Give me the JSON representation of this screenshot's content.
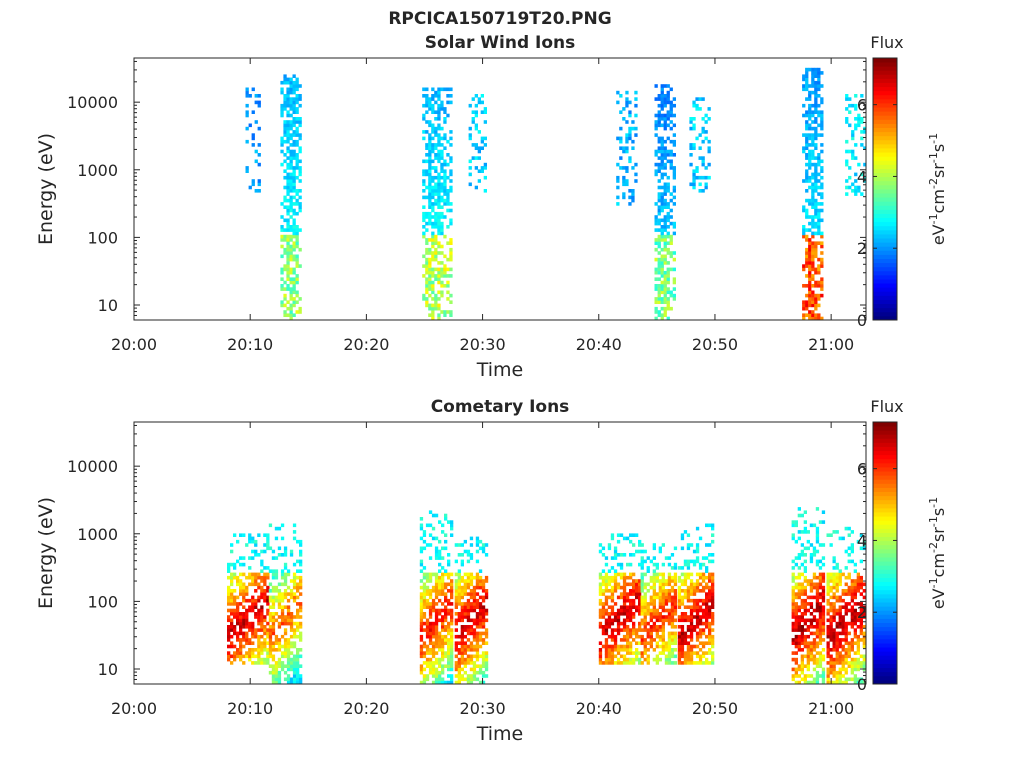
{
  "figure_title": "RPCICA150719T20.PNG",
  "chart_data": [
    {
      "type": "heatmap",
      "title": "Solar Wind Ions",
      "xlabel": "Time",
      "ylabel": "Energy (eV)",
      "yscale": "log",
      "ylim": [
        6,
        45000
      ],
      "xlim_minutes": [
        0,
        63
      ],
      "x_ticks": [
        "20:00",
        "20:10",
        "20:20",
        "20:30",
        "20:40",
        "20:50",
        "21:00"
      ],
      "y_ticks": [
        "10",
        "100",
        "1000",
        "10000"
      ],
      "colorbar": {
        "title": "Flux",
        "label": "eV-1cm-2sr-1s-1",
        "range": [
          0,
          7.3
        ],
        "ticks": [
          "0",
          "2",
          "4",
          "6"
        ],
        "colormap": "jet"
      },
      "bursts": [
        {
          "name": "burst-1a",
          "t_start": 9.6,
          "t_end": 10.8,
          "e_min": 500,
          "e_max": 15000,
          "peak": 2.0,
          "density": 0.35
        },
        {
          "name": "burst-1b",
          "t_start": 12.6,
          "t_end": 14.4,
          "e_min": 6,
          "e_max": 25000,
          "peak": 2.2,
          "low_peak": 3.8,
          "density": 0.75
        },
        {
          "name": "burst-2a",
          "t_start": 24.8,
          "t_end": 27.2,
          "e_min": 6,
          "e_max": 15000,
          "peak": 2.2,
          "low_peak": 4.0,
          "density": 0.75
        },
        {
          "name": "burst-2b",
          "t_start": 28.8,
          "t_end": 30.2,
          "e_min": 500,
          "e_max": 12000,
          "peak": 2.4,
          "density": 0.35
        },
        {
          "name": "burst-3a",
          "t_start": 41.5,
          "t_end": 43.3,
          "e_min": 300,
          "e_max": 14000,
          "peak": 2.2,
          "density": 0.35
        },
        {
          "name": "burst-3b",
          "t_start": 44.8,
          "t_end": 46.4,
          "e_min": 6,
          "e_max": 17000,
          "peak": 1.8,
          "low_peak": 3.6,
          "density": 0.75
        },
        {
          "name": "burst-3c",
          "t_start": 47.8,
          "t_end": 49.6,
          "e_min": 500,
          "e_max": 11000,
          "peak": 2.4,
          "density": 0.35
        },
        {
          "name": "burst-4a",
          "t_start": 57.5,
          "t_end": 59.3,
          "e_min": 6,
          "e_max": 30000,
          "peak": 2.0,
          "low_peak": 5.8,
          "density": 0.75
        },
        {
          "name": "burst-4b",
          "t_start": 61.2,
          "t_end": 62.8,
          "e_min": 400,
          "e_max": 12000,
          "peak": 2.6,
          "density": 0.35
        }
      ]
    },
    {
      "type": "heatmap",
      "title": "Cometary Ions",
      "xlabel": "Time",
      "ylabel": "Energy (eV)",
      "yscale": "log",
      "ylim": [
        6,
        45000
      ],
      "xlim_minutes": [
        0,
        63
      ],
      "x_ticks": [
        "20:00",
        "20:10",
        "20:20",
        "20:30",
        "20:40",
        "20:50",
        "21:00"
      ],
      "y_ticks": [
        "10",
        "100",
        "1000",
        "10000"
      ],
      "colorbar": {
        "title": "Flux",
        "label": "eV-1cm-2sr-1s-1",
        "range": [
          0,
          7.3
        ],
        "ticks": [
          "0",
          "2",
          "4",
          "6"
        ],
        "colormap": "jet"
      },
      "bursts": [
        {
          "name": "burst-1a",
          "t_start": 8.0,
          "t_end": 11.4,
          "e_min": 12,
          "e_max": 1000,
          "peak": 6.8,
          "density": 0.7
        },
        {
          "name": "burst-1b",
          "t_start": 11.6,
          "t_end": 14.4,
          "e_min": 6,
          "e_max": 1300,
          "peak": 5.8,
          "density": 0.65
        },
        {
          "name": "burst-2a",
          "t_start": 24.6,
          "t_end": 27.4,
          "e_min": 6,
          "e_max": 2000,
          "peak": 6.4,
          "density": 0.7
        },
        {
          "name": "burst-2b",
          "t_start": 27.6,
          "t_end": 30.4,
          "e_min": 6,
          "e_max": 900,
          "peak": 6.8,
          "density": 0.7
        },
        {
          "name": "burst-3a",
          "t_start": 40.0,
          "t_end": 43.4,
          "e_min": 12,
          "e_max": 1000,
          "peak": 6.8,
          "density": 0.7
        },
        {
          "name": "burst-3b",
          "t_start": 43.6,
          "t_end": 46.6,
          "e_min": 12,
          "e_max": 700,
          "peak": 6.2,
          "density": 0.7
        },
        {
          "name": "burst-3c",
          "t_start": 46.8,
          "t_end": 49.8,
          "e_min": 12,
          "e_max": 1300,
          "peak": 6.8,
          "density": 0.7
        },
        {
          "name": "burst-4a",
          "t_start": 56.6,
          "t_end": 59.4,
          "e_min": 6,
          "e_max": 2300,
          "peak": 7.0,
          "density": 0.7
        },
        {
          "name": "burst-4b",
          "t_start": 59.6,
          "t_end": 62.8,
          "e_min": 6,
          "e_max": 1200,
          "peak": 7.0,
          "density": 0.7
        }
      ]
    }
  ]
}
